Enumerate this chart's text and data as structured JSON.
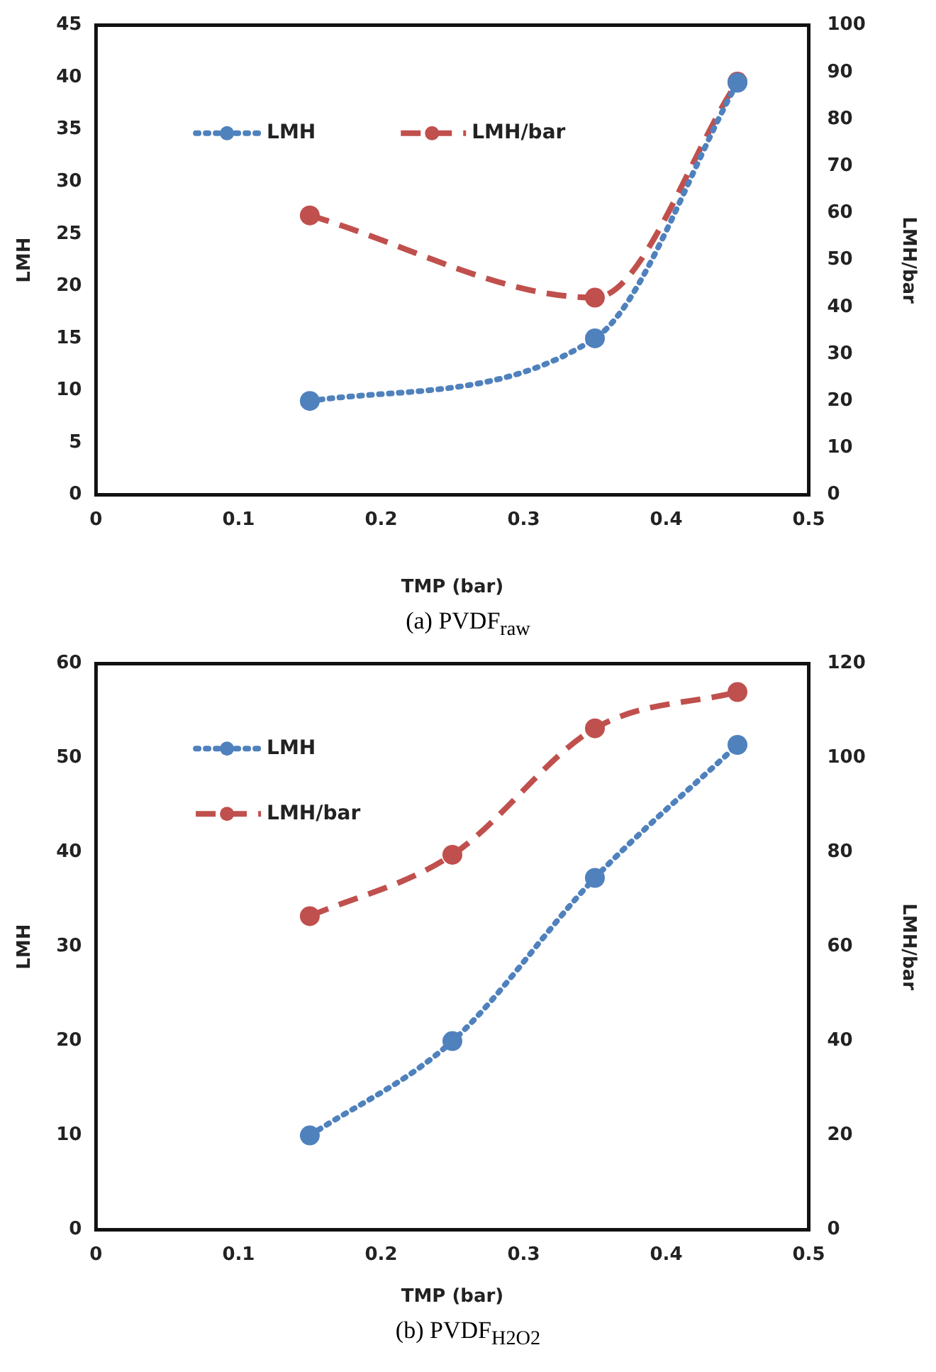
{
  "chart_data": [
    {
      "type": "line",
      "title": "(a) PVDF$_{raw}$",
      "xlabel": "TMP (bar)",
      "ylabel": "LMH",
      "y2label": "LMH/bar",
      "x": [
        0.15,
        0.35,
        0.45
      ],
      "series": [
        {
          "name": "LMH",
          "color": "#4f81bd",
          "values": [
            9,
            15,
            39.5
          ],
          "line_style": "dotted"
        },
        {
          "name": "LMH/bar",
          "color": "#c0504d",
          "values": [
            59.5,
            42,
            88
          ],
          "axis": "y2",
          "line_style": "dashed"
        }
      ],
      "xlim": [
        0,
        0.5
      ],
      "xticks": [
        0,
        0.1,
        0.2,
        0.3,
        0.4,
        0.5
      ],
      "ylim": [
        0,
        45
      ],
      "yticks": [
        0,
        5,
        10,
        15,
        20,
        25,
        30,
        35,
        40,
        45
      ],
      "y2lim": [
        0,
        100
      ],
      "y2ticks": [
        0,
        10,
        20,
        30,
        40,
        50,
        60,
        70,
        80,
        90,
        100
      ],
      "grid": false,
      "legend": "top left",
      "marker": "circle"
    },
    {
      "type": "line",
      "title": "(b) PVDF$_{H2O2}$",
      "xlabel": "TMP (bar)",
      "ylabel": "LMH",
      "y2label": "LMH/bar",
      "x": [
        0.15,
        0.25,
        0.35,
        0.45
      ],
      "series": [
        {
          "name": "LMH",
          "color": "#4f81bd",
          "values": [
            10,
            20,
            37.3,
            51.4
          ],
          "line_style": "dotted"
        },
        {
          "name": "LMH/bar",
          "color": "#c0504d",
          "values": [
            66.5,
            79.5,
            106.3,
            114
          ],
          "axis": "y2",
          "line_style": "dashed"
        }
      ],
      "xlim": [
        0,
        0.5
      ],
      "xticks": [
        0,
        0.1,
        0.2,
        0.3,
        0.4,
        0.5
      ],
      "ylim": [
        0,
        60
      ],
      "yticks": [
        0,
        10,
        20,
        30,
        40,
        50,
        60
      ],
      "y2lim": [
        0,
        120
      ],
      "y2ticks": [
        0,
        20,
        40,
        60,
        80,
        100,
        120
      ],
      "grid": false,
      "legend": "top left",
      "marker": "circle"
    }
  ]
}
